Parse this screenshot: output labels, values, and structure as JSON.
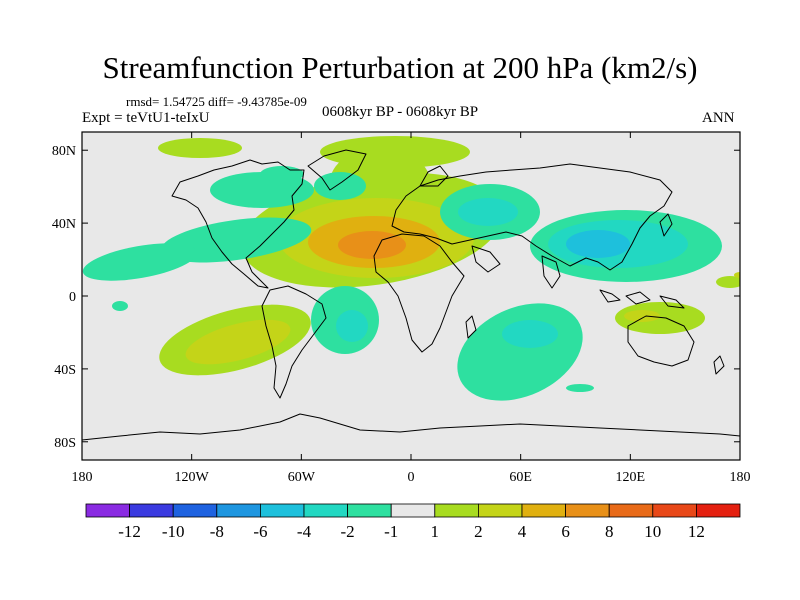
{
  "plot": {
    "title": "Streamfunction Perturbation at 200 hPa (km2/s)",
    "stats": "rmsd= 1.54725 diff= -9.43785e-09",
    "experiment": "Expt = teVtU1-teIxU",
    "period": "0608kyr BP - 0608kyr BP",
    "season": "ANN"
  },
  "map": {
    "type": "map",
    "lon_range": [
      -180,
      180
    ],
    "lat_range": [
      -90,
      90
    ],
    "x_ticks": [
      {
        "value": -180,
        "label": "180"
      },
      {
        "value": -120,
        "label": "120W"
      },
      {
        "value": -60,
        "label": "60W"
      },
      {
        "value": 0,
        "label": "0"
      },
      {
        "value": 60,
        "label": "60E"
      },
      {
        "value": 120,
        "label": "120E"
      },
      {
        "value": 180,
        "label": "180"
      }
    ],
    "y_ticks": [
      {
        "value": 80,
        "label": "80N"
      },
      {
        "value": 40,
        "label": "40N"
      },
      {
        "value": 0,
        "label": "0"
      },
      {
        "value": -40,
        "label": "40S"
      },
      {
        "value": -80,
        "label": "80S"
      }
    ]
  },
  "colorbar": {
    "labels": [
      "-12",
      "-10",
      "-8",
      "-6",
      "-4",
      "-2",
      "-1",
      "1",
      "2",
      "4",
      "6",
      "8",
      "10",
      "12"
    ],
    "colors": [
      "#8a2be2",
      "#3a3ae0",
      "#1e62e0",
      "#1e96e0",
      "#1ec0dc",
      "#22d8c2",
      "#2ee0a0",
      "#e8e8e8",
      "#a8dc20",
      "#c4d418",
      "#e0b010",
      "#e89018",
      "#e86a18",
      "#e84818",
      "#e42010"
    ],
    "legend": "bottom"
  }
}
